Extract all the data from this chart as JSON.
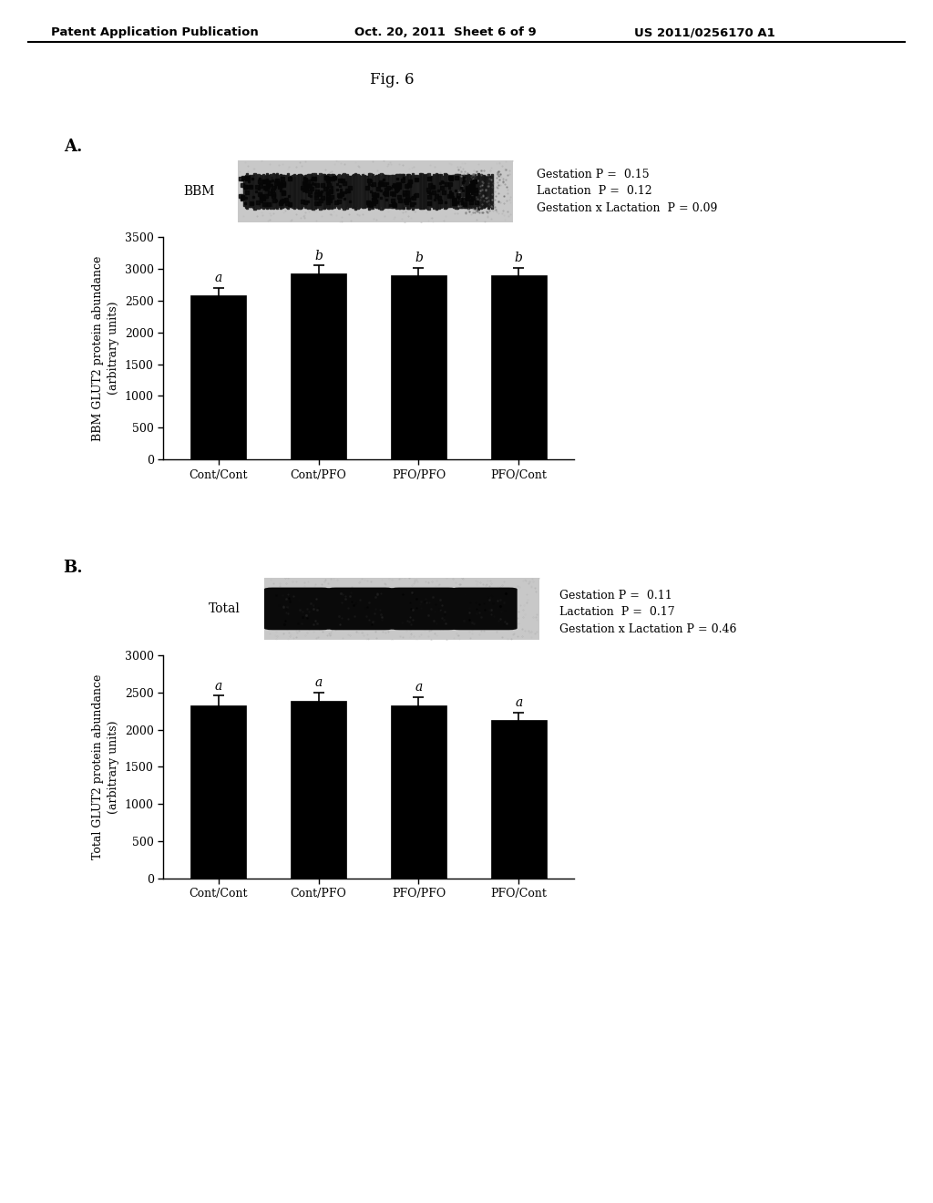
{
  "fig_title": "Fig. 6",
  "header_left": "Patent Application Publication",
  "header_mid": "Oct. 20, 2011  Sheet 6 of 9",
  "header_right": "US 2011/0256170 A1",
  "panel_A": {
    "label": "A.",
    "blot_label": "BBM",
    "categories": [
      "Cont/Cont",
      "Cont/PFO",
      "PFO/PFO",
      "PFO/Cont"
    ],
    "values": [
      2580,
      2930,
      2900,
      2900
    ],
    "errors": [
      120,
      120,
      115,
      110
    ],
    "sig_labels": [
      "a",
      "b",
      "b",
      "b"
    ],
    "ylabel": "BBM GLUT2 protein abundance\n(arbitrary units)",
    "ylim": [
      0,
      3500
    ],
    "yticks": [
      0,
      500,
      1000,
      1500,
      2000,
      2500,
      3000,
      3500
    ],
    "stats_text": "Gestation P =  0.15\nLactation  P =  0.12\nGestation x Lactation  P = 0.09"
  },
  "panel_B": {
    "label": "B.",
    "blot_label": "Total",
    "categories": [
      "Cont/Cont",
      "Cont/PFO",
      "PFO/PFO",
      "PFO/Cont"
    ],
    "values": [
      2330,
      2390,
      2330,
      2130
    ],
    "errors": [
      130,
      110,
      110,
      100
    ],
    "sig_labels": [
      "a",
      "a",
      "a",
      "a"
    ],
    "ylabel": "Total GLUT2 protein abundance\n(arbitrary units)",
    "ylim": [
      0,
      3000
    ],
    "yticks": [
      0,
      500,
      1000,
      1500,
      2000,
      2500,
      3000
    ],
    "stats_text": "Gestation P =  0.11\nLactation  P =  0.17\nGestation x Lactation P = 0.46"
  },
  "bar_color": "#000000",
  "bar_width": 0.55,
  "background_color": "#ffffff",
  "text_color": "#000000"
}
